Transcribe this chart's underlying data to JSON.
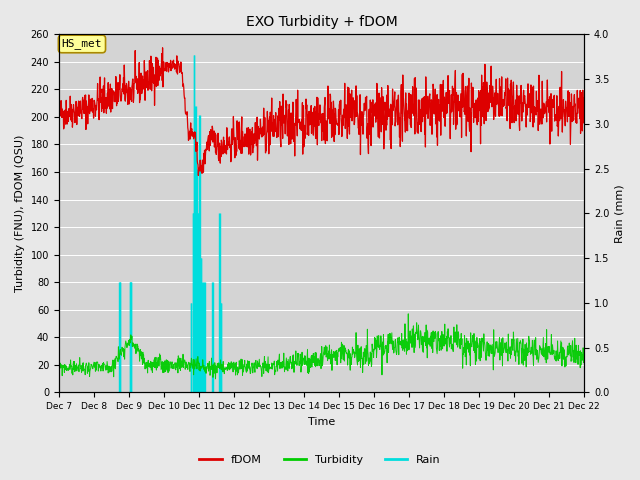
{
  "title": "EXO Turbidity + fDOM",
  "xlabel": "Time",
  "ylabel_left": "Turbidity (FNU), fDOM (QSU)",
  "ylabel_right": "Rain (mm)",
  "xlim_days": [
    7,
    22
  ],
  "ylim_left": [
    0,
    260
  ],
  "ylim_right": [
    0,
    4.0
  ],
  "yticks_left": [
    0,
    20,
    40,
    60,
    80,
    100,
    120,
    140,
    160,
    180,
    200,
    220,
    240,
    260
  ],
  "yticks_right": [
    0.0,
    0.5,
    1.0,
    1.5,
    2.0,
    2.5,
    3.0,
    3.5,
    4.0
  ],
  "bg_color": "#e8e8e8",
  "plot_bg_color": "#d4d4d4",
  "annotation_label": "HS_met",
  "annotation_bg": "#ffff99",
  "annotation_border": "#aa8800",
  "fdom_color": "#dd0000",
  "turbidity_color": "#00cc00",
  "rain_color": "#00dddd",
  "legend_fdom": "fDOM",
  "legend_turbidity": "Turbidity",
  "legend_rain": "Rain",
  "xtick_labels": [
    "Dec 7",
    "Dec 8",
    "Dec 9",
    "Dec 10",
    "Dec 11",
    "Dec 12",
    "Dec 13",
    "Dec 14",
    "Dec 15",
    "Dec 16",
    "Dec 17",
    "Dec 18",
    "Dec 19",
    "Dec 20",
    "Dec 21",
    "Dec 22"
  ]
}
